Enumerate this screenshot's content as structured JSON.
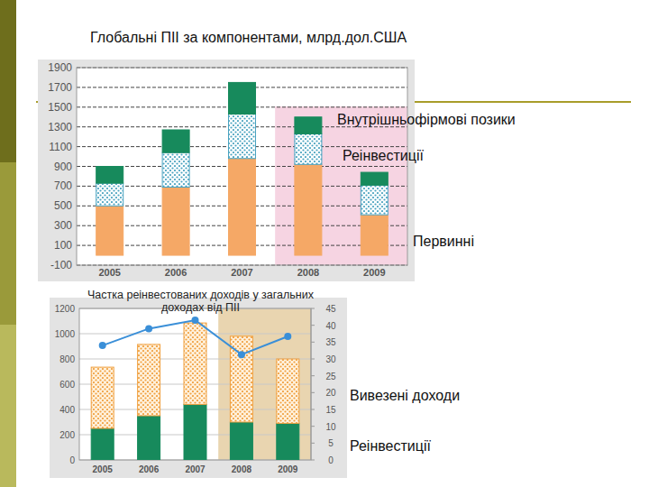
{
  "chart_data": [
    {
      "type": "bar",
      "title": "Глобальні ПІІ за компонентами, млрд.дол.США",
      "stacked": true,
      "grid": true,
      "categories": [
        "2005",
        "2006",
        "2007",
        "2008",
        "2009"
      ],
      "series": [
        {
          "name": "Первинні",
          "color": "#f5a866",
          "values": [
            500,
            690,
            980,
            920,
            410
          ]
        },
        {
          "name": "Реінвестиції",
          "color": "#4aa3c0",
          "values": [
            230,
            350,
            450,
            310,
            300
          ]
        },
        {
          "name": "Внутрішньофірмові позики",
          "color": "#178a5c",
          "values": [
            170,
            230,
            320,
            170,
            130
          ]
        }
      ],
      "ylim": [
        -100,
        1900
      ],
      "yticks": [
        -100,
        100,
        300,
        500,
        700,
        900,
        1100,
        1300,
        1500,
        1700,
        1900
      ]
    },
    {
      "type": "bar",
      "stacked": true,
      "grid": true,
      "categories": [
        "2005",
        "2006",
        "2007",
        "2008",
        "2009"
      ],
      "series": [
        {
          "name": "Реінвестиції",
          "color": "#178a5c",
          "values": [
            250,
            350,
            440,
            300,
            290
          ]
        },
        {
          "name": "Вивезені доходи",
          "color": "#f0a040",
          "values": [
            485,
            565,
            645,
            680,
            510
          ]
        },
        {
          "name": "Частка реінвестованих доходів у загальних доходах від ПІІ",
          "type": "line",
          "axis": "y2",
          "color": "#3a8fd8",
          "marker": "circle",
          "values": [
            34,
            39,
            41.5,
            31.3,
            36.7
          ]
        }
      ],
      "ylim": [
        0,
        1200
      ],
      "yticks": [
        0,
        200,
        400,
        600,
        800,
        1000,
        1200
      ],
      "y2lim": [
        0,
        45
      ],
      "y2ticks": [
        0,
        5,
        10,
        15,
        20,
        25,
        30,
        35,
        40,
        45
      ]
    }
  ]
}
